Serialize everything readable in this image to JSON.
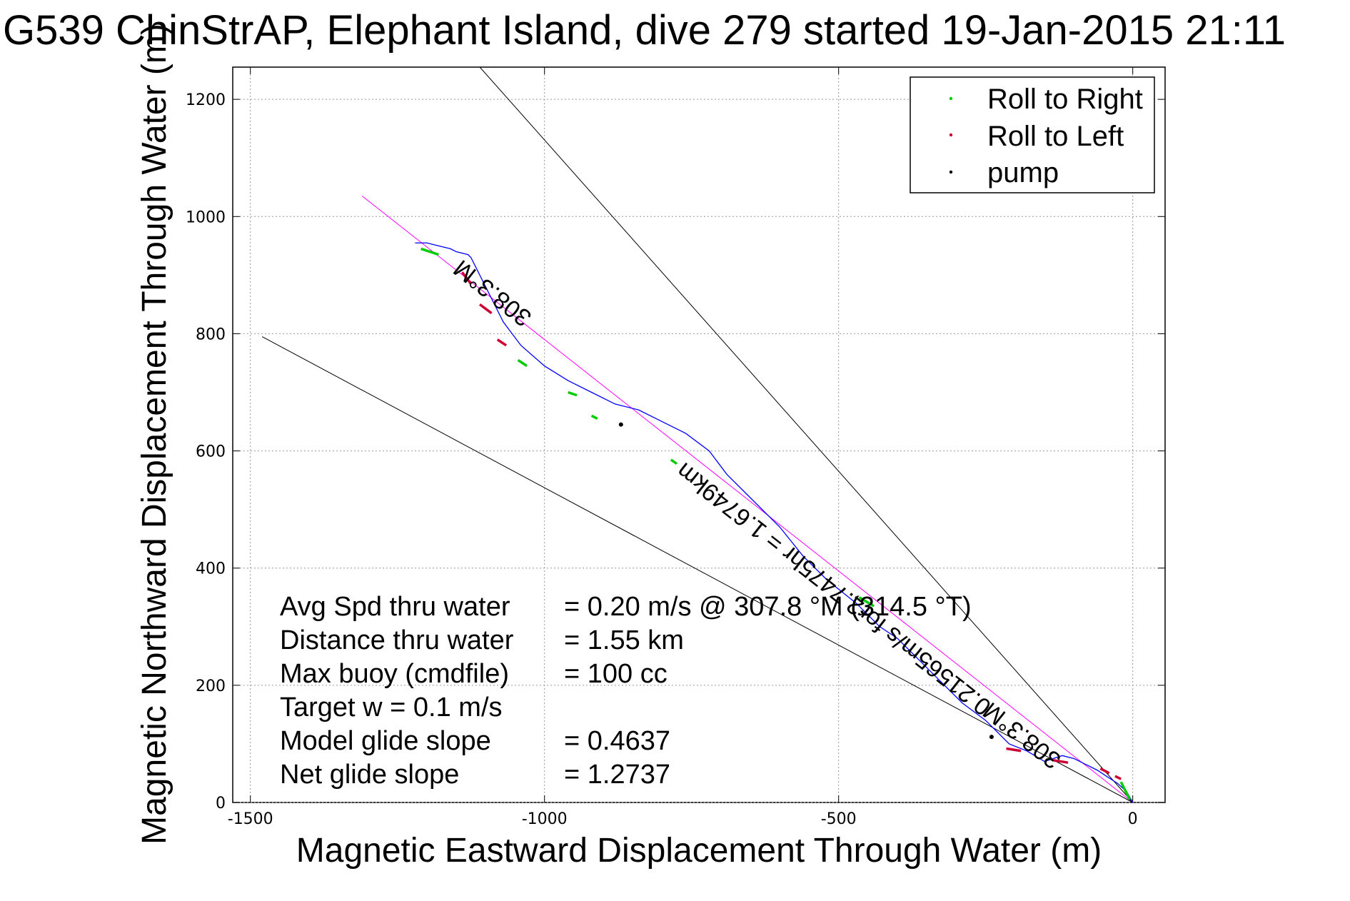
{
  "chart_data": {
    "type": "line",
    "title": "G539 ChinStrAP, Elephant Island, dive 279 started 19-Jan-2015 21:11",
    "xlabel": "Magnetic Eastward Displacement Through Water (m)",
    "ylabel": "Magnetic Northward Displacement Through Water (m)",
    "xlim": [
      -1530,
      55
    ],
    "ylim": [
      0,
      1255
    ],
    "xticks": [
      -1500,
      -1000,
      -500,
      0
    ],
    "yticks": [
      0,
      200,
      400,
      600,
      800,
      1000,
      1200
    ],
    "grid": true,
    "legend": {
      "placement": "top-right",
      "entries": [
        {
          "label": "Roll to Right",
          "color": "#00cc00"
        },
        {
          "label": "Roll to Left",
          "color": "#cc0033"
        },
        {
          "label": "pump",
          "color": "#000000"
        }
      ]
    },
    "series": [
      {
        "color": "#0000ff",
        "x": [
          0,
          -10,
          -25,
          -45,
          -60,
          -80,
          -100,
          -120,
          -150,
          -180,
          -210,
          -250,
          -290,
          -330,
          -360,
          -400,
          -430,
          -470,
          -520,
          -560,
          -600,
          -650,
          -690,
          -720,
          -760,
          -800,
          -840,
          -880,
          -920,
          -960,
          -1000,
          -1040,
          -1070,
          -1090,
          -1110,
          -1125,
          -1130,
          -1150,
          -1160,
          -1180,
          -1200,
          -1220
        ],
        "y": [
          0,
          18,
          32,
          45,
          55,
          65,
          75,
          80,
          70,
          88,
          100,
          140,
          170,
          210,
          240,
          280,
          300,
          340,
          380,
          420,
          470,
          520,
          560,
          600,
          630,
          650,
          670,
          680,
          700,
          720,
          745,
          780,
          820,
          860,
          900,
          930,
          935,
          940,
          945,
          950,
          955,
          955
        ]
      },
      {
        "color": "#ff00ff",
        "x": [
          0,
          -1310
        ],
        "y": [
          0,
          1035
        ]
      },
      {
        "color": "#000000",
        "x": [
          0,
          -1480
        ],
        "y": [
          0,
          795
        ]
      },
      {
        "color": "#000000",
        "x": [
          0,
          -1110
        ],
        "y": [
          0,
          1255
        ]
      }
    ],
    "roll_right_segments": [
      {
        "x": [
          -20,
          -5
        ],
        "y": [
          35,
          5
        ]
      },
      {
        "x": [
          -1045,
          -1030
        ],
        "y": [
          755,
          745
        ]
      },
      {
        "x": [
          -960,
          -945
        ],
        "y": [
          700,
          695
        ]
      },
      {
        "x": [
          -785,
          -775
        ],
        "y": [
          585,
          578
        ]
      },
      {
        "x": [
          -465,
          -440
        ],
        "y": [
          350,
          335
        ]
      },
      {
        "x": [
          -1210,
          -1180
        ],
        "y": [
          945,
          935
        ]
      },
      {
        "x": [
          -920,
          -910
        ],
        "y": [
          660,
          655
        ]
      }
    ],
    "roll_left_segments": [
      {
        "x": [
          -1140,
          -1125
        ],
        "y": [
          905,
          885
        ]
      },
      {
        "x": [
          -1110,
          -1090
        ],
        "y": [
          850,
          835
        ]
      },
      {
        "x": [
          -1080,
          -1065
        ],
        "y": [
          790,
          780
        ]
      },
      {
        "x": [
          -215,
          -190
        ],
        "y": [
          92,
          88
        ]
      },
      {
        "x": [
          -135,
          -110
        ],
        "y": [
          72,
          68
        ]
      },
      {
        "x": [
          -55,
          -40
        ],
        "y": [
          58,
          50
        ]
      },
      {
        "x": [
          -30,
          -20
        ],
        "y": [
          45,
          40
        ]
      }
    ],
    "pump_points": [
      {
        "x": -870,
        "y": 645
      },
      {
        "x": -240,
        "y": 112
      }
    ],
    "line_labels": [
      {
        "text": "308.3°M",
        "x": -1080,
        "y": 880
      },
      {
        "text": "0.21565m/s for2.7475hr = 1.6749km",
        "x": -500,
        "y": 375
      },
      {
        "text": "308.3°M",
        "x": -180,
        "y": 125
      }
    ],
    "annotations": [
      {
        "label": "Avg Spd thru water",
        "value": "=  0.20 m/s @  307.8  °M  (314.5 °T)"
      },
      {
        "label": "Distance thru water",
        "value": "=  1.55 km"
      },
      {
        "label": "Max buoy (cmdfile)",
        "value": "= 100 cc"
      },
      {
        "label": "Target w    = 0.1 m/s",
        "value": ""
      },
      {
        "label": "Model glide slope",
        "value": "= 0.4637"
      },
      {
        "label": "Net glide slope",
        "value": "= 1.2737"
      }
    ]
  }
}
